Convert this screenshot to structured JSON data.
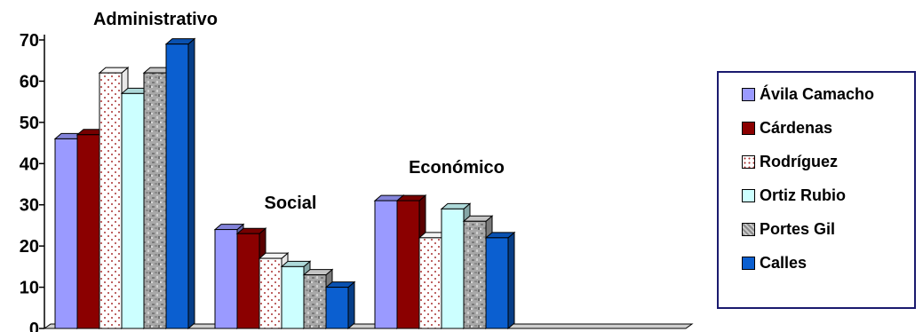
{
  "chart_data": {
    "type": "bar",
    "categories": [
      "Administrativo",
      "Social",
      "Económico"
    ],
    "series": [
      {
        "name": "Ávila Camacho",
        "values": [
          46,
          24,
          31
        ],
        "color": "#9a9aff",
        "pattern": "solid"
      },
      {
        "name": "Cárdenas",
        "values": [
          47,
          23,
          31
        ],
        "color": "#8b0000",
        "pattern": "solid"
      },
      {
        "name": "Rodríguez",
        "values": [
          62,
          17,
          22
        ],
        "color": "#ffffff",
        "pattern": "dots"
      },
      {
        "name": "Ortiz Rubio",
        "values": [
          57,
          15,
          29
        ],
        "color": "#ccffff",
        "pattern": "solid"
      },
      {
        "name": "Portes Gil",
        "values": [
          62,
          13,
          26
        ],
        "color": "#a6a6a6",
        "pattern": "granite"
      },
      {
        "name": "Calles",
        "values": [
          69,
          10,
          22
        ],
        "color": "#0b5fd0",
        "pattern": "solid"
      }
    ],
    "yticks": [
      "0",
      "10",
      "20",
      "30",
      "40",
      "50",
      "60",
      "70"
    ],
    "ylim": [
      0,
      70
    ],
    "legend_position": "right",
    "grid": false,
    "style": "3d-clustered-column"
  }
}
